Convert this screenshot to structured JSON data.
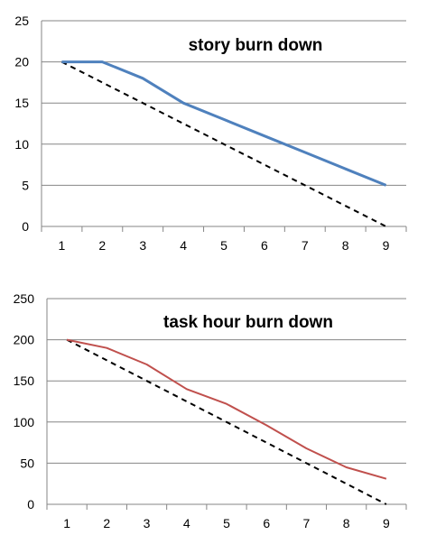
{
  "chart_data": [
    {
      "type": "line",
      "title": "story burn down",
      "xlabel": "",
      "ylabel": "",
      "categories": [
        "1",
        "2",
        "3",
        "4",
        "5",
        "6",
        "7",
        "8",
        "9"
      ],
      "ylim": [
        0,
        25
      ],
      "yticks": [
        0,
        5,
        10,
        15,
        20,
        25
      ],
      "grid": true,
      "series": [
        {
          "values": [
            20,
            20,
            18,
            15,
            13,
            11,
            9,
            7,
            5
          ],
          "color": "#4f81bd",
          "style": "solid"
        },
        {
          "values": [
            20,
            17.5,
            15,
            12.5,
            10,
            7.5,
            5,
            2.5,
            0
          ],
          "color": "#000000",
          "style": "dashed"
        }
      ]
    },
    {
      "type": "line",
      "title": "task hour burn down",
      "xlabel": "",
      "ylabel": "",
      "categories": [
        "1",
        "2",
        "3",
        "4",
        "5",
        "6",
        "7",
        "8",
        "9"
      ],
      "ylim": [
        0,
        250
      ],
      "yticks": [
        0,
        50,
        100,
        150,
        200,
        250
      ],
      "grid": true,
      "series": [
        {
          "values": [
            200,
            190,
            170,
            140,
            122,
            96,
            68,
            45,
            31
          ],
          "color": "#c0504d",
          "style": "solid"
        },
        {
          "values": [
            200,
            175,
            150,
            125,
            100,
            75,
            50,
            25,
            0
          ],
          "color": "#000000",
          "style": "dashed"
        }
      ]
    }
  ]
}
